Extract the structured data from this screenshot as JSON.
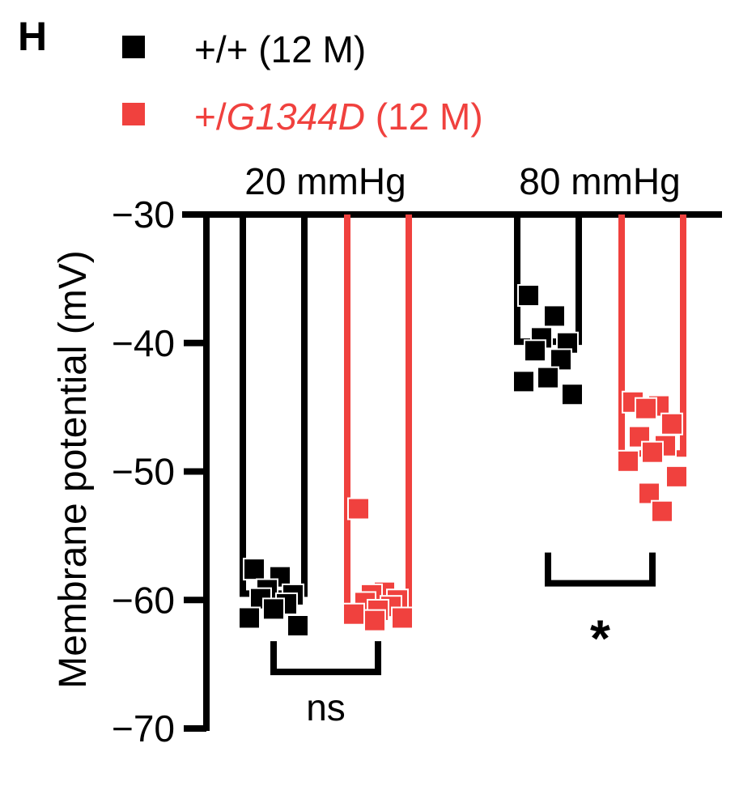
{
  "panel_label": "H",
  "colors": {
    "wild_type": "#000000",
    "mutant": "#f0413e"
  },
  "chart_data": {
    "type": "bar",
    "ylabel": "Membrane potential (mV)",
    "ylim": [
      -70,
      -30
    ],
    "yticks": [
      -30,
      -40,
      -50,
      -60,
      -70
    ],
    "ytick_labels": [
      "−30",
      "−40",
      "−50",
      "−60",
      "−70"
    ],
    "categories": [
      "20 mmHg",
      "80 mmHg"
    ],
    "legend": [
      {
        "prefix": "+/+",
        "italic": "",
        "suffix": " (12 M)",
        "color": "#000000"
      },
      {
        "prefix": "+/",
        "italic": "G1344D",
        "suffix": " (12 M)",
        "color": "#f0413e"
      }
    ],
    "legend_position": "top-left",
    "series": [
      {
        "key": "wt",
        "color": "#000000",
        "means": [
          -59.5,
          -39.9
        ],
        "points": [
          [
            -57.6,
            -58.2,
            -59.2,
            -59.6,
            -59.9,
            -60.3,
            -60.7,
            -61.4,
            -62.0
          ],
          [
            -36.3,
            -37.9,
            -39.6,
            -40.0,
            -40.6,
            -41.3,
            -42.7,
            -43.0,
            -44.0
          ]
        ]
      },
      {
        "key": "mut",
        "color": "#f0413e",
        "means": [
          -61.1,
          -48.6
        ],
        "points": [
          [
            -52.9,
            -59.4,
            -59.6,
            -60.0,
            -60.2,
            -60.5,
            -60.8,
            -61.1,
            -61.4,
            -61.6
          ],
          [
            -44.6,
            -44.9,
            -45.1,
            -46.3,
            -47.3,
            -48.0,
            -48.5,
            -49.2,
            -50.4,
            -51.7,
            -53.1
          ]
        ]
      }
    ],
    "significance": [
      {
        "category": "20 mmHg",
        "label": "ns",
        "bracket_y": -65.6
      },
      {
        "category": "80 mmHg",
        "label": "*",
        "bracket_y": -58.7
      }
    ]
  }
}
